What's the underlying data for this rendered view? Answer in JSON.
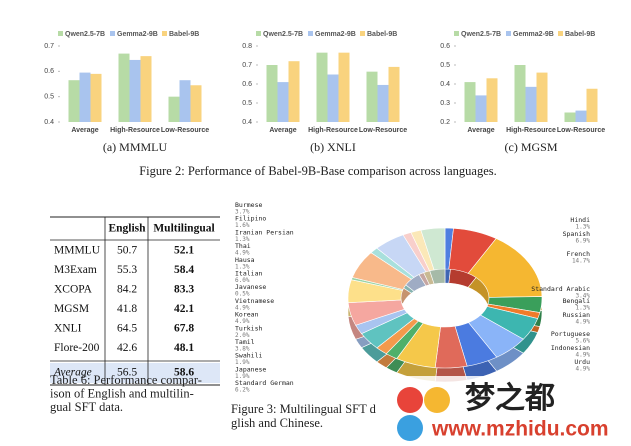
{
  "figure2": {
    "caption": "Figure 2: Performance of Babel-9B-Base comparison across languages.",
    "charts": [
      {
        "type": "bar",
        "title": "(a) MMMLU",
        "categories": [
          "Average",
          "High-Resource",
          "Low-Resource"
        ],
        "series": [
          {
            "name": "Qwen2.5-7B",
            "color": "#b7dba6",
            "values": [
              0.565,
              0.67,
              0.5
            ]
          },
          {
            "name": "Gemma2-9B",
            "color": "#a9c4ee",
            "values": [
              0.595,
              0.645,
              0.565
            ]
          },
          {
            "name": "Babel-9B",
            "color": "#f9d37e",
            "values": [
              0.59,
              0.66,
              0.545
            ]
          }
        ],
        "ylim": [
          0.4,
          0.7
        ],
        "yticks": [
          0.4,
          0.5,
          0.6,
          0.7
        ]
      },
      {
        "type": "bar",
        "title": "(b) XNLI",
        "categories": [
          "Average",
          "High-Resource",
          "Low-Resource"
        ],
        "series": [
          {
            "name": "Qwen2.5-7B",
            "color": "#b7dba6",
            "values": [
              0.7,
              0.765,
              0.665
            ]
          },
          {
            "name": "Gemma2-9B",
            "color": "#a9c4ee",
            "values": [
              0.61,
              0.65,
              0.595
            ]
          },
          {
            "name": "Babel-9B",
            "color": "#f9d37e",
            "values": [
              0.72,
              0.765,
              0.69
            ]
          }
        ],
        "ylim": [
          0.4,
          0.8
        ],
        "yticks": [
          0.4,
          0.5,
          0.6,
          0.7,
          0.8
        ]
      },
      {
        "type": "bar",
        "title": "(c) MGSM",
        "categories": [
          "Average",
          "High-Resource",
          "Low-Resource"
        ],
        "series": [
          {
            "name": "Qwen2.5-7B",
            "color": "#b7dba6",
            "values": [
              0.41,
              0.5,
              0.25
            ]
          },
          {
            "name": "Gemma2-9B",
            "color": "#a9c4ee",
            "values": [
              0.34,
              0.385,
              0.26
            ]
          },
          {
            "name": "Babel-9B",
            "color": "#f9d37e",
            "values": [
              0.43,
              0.46,
              0.375
            ]
          }
        ],
        "ylim": [
          0.2,
          0.6
        ],
        "yticks": [
          0.2,
          0.3,
          0.4,
          0.5,
          0.6
        ]
      }
    ]
  },
  "table": {
    "header": [
      "English",
      "Multilingual"
    ],
    "rows": [
      [
        "MMMLU",
        "50.7",
        "52.1"
      ],
      [
        "M3Exam",
        "55.3",
        "58.4"
      ],
      [
        "XCOPA",
        "84.2",
        "83.3"
      ],
      [
        "MGSM",
        "41.8",
        "42.1"
      ],
      [
        "XNLI",
        "64.5",
        "67.8"
      ],
      [
        "Flore-200",
        "42.6",
        "48.1"
      ]
    ],
    "average": [
      "Average",
      "56.5",
      "58.6"
    ],
    "caption": [
      "Table 6: Performance compar-",
      "ison of English and multilin-",
      "gual SFT data."
    ]
  },
  "figure3": {
    "caption": [
      "Figure 3: Multilingual SFT d",
      "glish and Chinese."
    ],
    "chart_data": {
      "type": "donut",
      "categories": [
        "Hindi",
        "Spanish",
        "French",
        "Standard Arabic",
        "Bengali",
        "Russian",
        "Portuguese",
        "Indonesian",
        "Urdu",
        "Standard German",
        "Japanese",
        "Swahili",
        "Tamil",
        "Turkish",
        "Korean",
        "Vietnamese",
        "Javanese",
        "Italian",
        "Hausa",
        "Thai",
        "Iranian Persian",
        "Filipino",
        "Burmese"
      ],
      "values": [
        1.3,
        6.9,
        14.7,
        3.4,
        1.3,
        4.9,
        5.6,
        4.9,
        4.9,
        6.2,
        1.9,
        1.9,
        3.8,
        2.0,
        4.9,
        4.9,
        0.5,
        6.0,
        1.3,
        4.9,
        1.3,
        1.6,
        3.7
      ],
      "value_labels": [
        "1.3%",
        "6.9%",
        "14.7%",
        "3.4%",
        "1.3%",
        "4.9%",
        "5.6%",
        "4.9%",
        "4.9%",
        "6.2%",
        "1.9%",
        "1.9%",
        "3.8%",
        "2.0%",
        "4.9%",
        "4.9%",
        "0.5%",
        "6.0%",
        "1.3%",
        "4.9%",
        "1.3%",
        "1.6%",
        "3.7%"
      ],
      "colors": [
        "#4f7fe0",
        "#e24b3b",
        "#f5b731",
        "#3a9f5b",
        "#f07b2a",
        "#3db6b0",
        "#8ab4f8",
        "#4b7be0",
        "#e06a5a",
        "#f5c84a",
        "#4fb06a",
        "#f39a4c",
        "#5fc3c0",
        "#a8c4f0",
        "#f5a7a0",
        "#fde08a",
        "#9ad3a6",
        "#f8b98a",
        "#a8e0dc",
        "#c7d7f5",
        "#f8cfcb",
        "#fbe8b8",
        "#cfe8d2"
      ]
    }
  },
  "watermark": [
    "梦之都",
    "www.mzhidu.com"
  ]
}
